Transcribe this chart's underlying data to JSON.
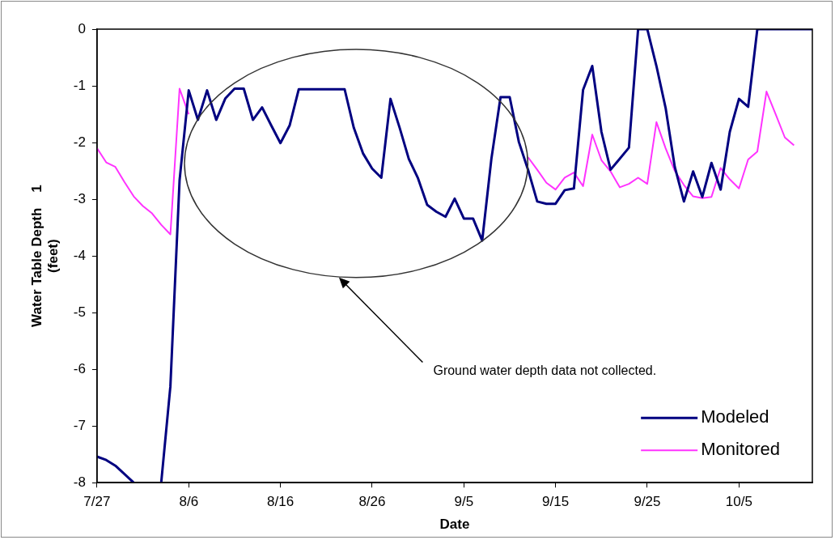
{
  "chart_data": {
    "type": "line",
    "xlabel": "Date",
    "ylabel": "Water Table Depth    1\n(feet)",
    "annotations": [
      "Ground water depth data not collected."
    ],
    "xlim": [
      "--07-27",
      "--10-13"
    ],
    "xticks": [
      {
        "value": "--07-27",
        "label": "7/27"
      },
      {
        "value": "--08-06",
        "label": "8/6"
      },
      {
        "value": "--08-16",
        "label": "8/16"
      },
      {
        "value": "--08-26",
        "label": "8/26"
      },
      {
        "value": "--09-05",
        "label": "9/5"
      },
      {
        "value": "--09-15",
        "label": "9/15"
      },
      {
        "value": "--09-25",
        "label": "9/25"
      },
      {
        "value": "--10-05",
        "label": "10/5"
      }
    ],
    "ylim": [
      -8,
      0
    ],
    "yticks": [
      -8,
      -7,
      -6,
      -5,
      -4,
      -3,
      -2,
      -1,
      0
    ],
    "grid": false,
    "legend": "bottom right",
    "marker": "none",
    "series": [
      {
        "name": "Modeled",
        "color": "#000080",
        "x": [
          "--07-27",
          "--07-28",
          "--07-29",
          "--07-30",
          "--07-31",
          "--08-01",
          "--08-02",
          "--08-03",
          "--08-04",
          "--08-05",
          "--08-06",
          "--08-07",
          "--08-08",
          "--08-09",
          "--08-10",
          "--08-11",
          "--08-12",
          "--08-13",
          "--08-14",
          "--08-15",
          "--08-16",
          "--08-17",
          "--08-18",
          "--08-23",
          "--08-24",
          "--08-25",
          "--08-26",
          "--08-27",
          "--08-28",
          "--08-29",
          "--08-30",
          "--08-31",
          "--09-01",
          "--09-02",
          "--09-03",
          "--09-04",
          "--09-05",
          "--09-06",
          "--09-07",
          "--09-08",
          "--09-09",
          "--09-10",
          "--09-11",
          "--09-12",
          "--09-13",
          "--09-14",
          "--09-15",
          "--09-16",
          "--09-17",
          "--09-18",
          "--09-19",
          "--09-20",
          "--09-21",
          "--09-23",
          "--09-24",
          "--09-25",
          "--09-26",
          "--09-27",
          "--09-28",
          "--09-29",
          "--09-30",
          "--10-01",
          "--10-02",
          "--10-03",
          "--10-04",
          "--10-05",
          "--10-06",
          "--10-07",
          "--10-13"
        ],
        "values": [
          -7.54,
          -7.6,
          -7.7,
          -7.85,
          -8,
          null,
          null,
          -8,
          -6.3,
          -2.67,
          -1.08,
          -1.6,
          -1.08,
          -1.6,
          -1.22,
          -1.05,
          -1.05,
          -1.6,
          -1.38,
          -1.7,
          -2.01,
          -1.7,
          -1.06,
          -1.06,
          -1.74,
          -2.19,
          -2.46,
          -2.62,
          -1.23,
          -1.74,
          -2.29,
          -2.63,
          -3.1,
          -3.22,
          -3.31,
          -2.99,
          -3.34,
          -3.34,
          -3.73,
          -2.29,
          -1.2,
          -1.2,
          -1.99,
          -2.48,
          -3.04,
          -3.08,
          -3.08,
          -2.84,
          -2.81,
          -1.07,
          -0.65,
          -1.81,
          -2.48,
          -2.09,
          0,
          0,
          -0.65,
          -1.39,
          -2.43,
          -3.04,
          -2.51,
          -2.96,
          -2.36,
          -2.83,
          -1.81,
          -1.23,
          -1.37,
          0,
          0
        ]
      },
      {
        "name": "Monitored",
        "color": "#ff33ff",
        "x": [
          "--07-27",
          "--07-28",
          "--07-29",
          "--07-30",
          "--07-31",
          "--08-01",
          "--08-02",
          "--08-03",
          "--08-04",
          "--08-05",
          "--08-06",
          "--08-07",
          "--09-12",
          "--09-13",
          "--09-14",
          "--09-15",
          "--09-16",
          "--09-17",
          "--09-18",
          "--09-19",
          "--09-20",
          "--09-21",
          "--09-22",
          "--09-23",
          "--09-24",
          "--09-25",
          "--09-26",
          "--09-27",
          "--09-28",
          "--09-29",
          "--09-30",
          "--10-01",
          "--10-02",
          "--10-03",
          "--10-04",
          "--10-05",
          "--10-06",
          "--10-07",
          "--10-08",
          "--10-09",
          "--10-10",
          "--10-11"
        ],
        "values": [
          -2.1,
          -2.35,
          -2.43,
          -2.7,
          -2.95,
          -3.12,
          -3.25,
          -3.45,
          -3.62,
          -1.05,
          -1.5,
          null,
          -2.26,
          -2.48,
          -2.71,
          -2.83,
          -2.62,
          -2.53,
          -2.77,
          -1.86,
          -2.31,
          -2.51,
          -2.79,
          -2.73,
          -2.62,
          -2.73,
          -1.64,
          -2.1,
          -2.5,
          -2.75,
          -2.95,
          -2.98,
          -2.96,
          -2.45,
          -2.65,
          -2.81,
          -2.3,
          -2.16,
          -1.1,
          -1.5,
          -1.91,
          -2.05
        ]
      }
    ]
  }
}
